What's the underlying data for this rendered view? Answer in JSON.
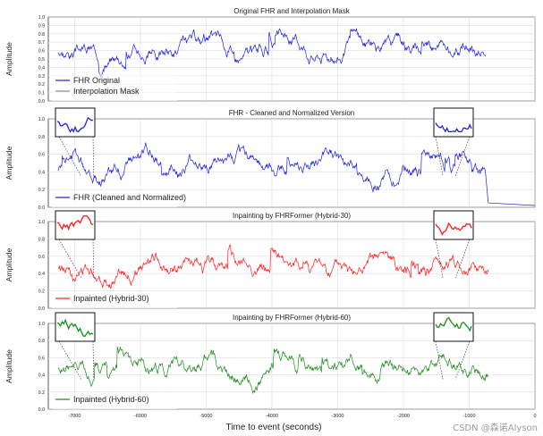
{
  "xlabel": "Time to event (seconds)",
  "watermark": "CSDN @森诺Alyson",
  "colors": {
    "blue": "#1f1fe0",
    "red": "#ff1a1a",
    "green": "#1a8a1a",
    "gray": "#8a8a8a",
    "grid": "#dcdcdc"
  },
  "chart_data": [
    {
      "type": "line",
      "title": "Original FHR and Interpolation Mask",
      "ylabel": "Amplitude",
      "xlim": [
        -7400,
        0
      ],
      "ylim": [
        0,
        1.0
      ],
      "yticks": [
        "0.0",
        "0.1",
        "0.2",
        "0.3",
        "0.4",
        "0.5",
        "0.6",
        "0.7",
        "0.8",
        "0.9",
        "1.0"
      ],
      "xticks": [],
      "legend": [
        "FHR Original",
        "Interpolation Mask"
      ],
      "series": [
        {
          "name": "FHR Original",
          "color": "blue",
          "start": -7250,
          "end": -750,
          "base": 0.6,
          "amp": 0.22,
          "seed": 3
        },
        {
          "name": "Interpolation Mask",
          "color": "gray",
          "type": "mask"
        }
      ]
    },
    {
      "type": "line",
      "title": "FHR - Cleaned and Normalized Version",
      "ylabel": "Amplitude",
      "xlim": [
        -7400,
        0
      ],
      "ylim": [
        0,
        1.0
      ],
      "yticks": [
        "0.0",
        "0.2",
        "0.4",
        "0.6",
        "0.8",
        "1.0"
      ],
      "xticks": [],
      "legend": [
        "FHR (Cleaned and Normalized)"
      ],
      "series": [
        {
          "name": "FHR (Cleaned and Normalized)",
          "color": "blue",
          "start": -7250,
          "end": -750,
          "base": 0.45,
          "amp": 0.25,
          "seed": 7,
          "tail": true
        }
      ]
    },
    {
      "type": "line",
      "title": "Inpainting by FHRFormer (Hybrid-30)",
      "ylabel": "Amplitude",
      "xlim": [
        -7400,
        0
      ],
      "ylim": [
        0,
        1.0
      ],
      "yticks": [
        "0.0",
        "0.2",
        "0.4",
        "0.6",
        "0.8",
        "1.0"
      ],
      "xticks": [],
      "legend": [
        "Inpainted (Hybrid-30)"
      ],
      "series": [
        {
          "name": "Inpainted (Hybrid-30)",
          "color": "red",
          "start": -7250,
          "end": -700,
          "base": 0.45,
          "amp": 0.25,
          "seed": 7
        }
      ]
    },
    {
      "type": "line",
      "title": "Inpainting by FHRFormer (Hybrid-60)",
      "ylabel": "Amplitude",
      "xlim": [
        -7400,
        0
      ],
      "ylim": [
        0,
        1.0
      ],
      "yticks": [
        "0.0",
        "0.2",
        "0.4",
        "0.6",
        "0.8",
        "1.0"
      ],
      "xticks": [
        "-7000",
        "-6000",
        "-5000",
        "-4000",
        "-3000",
        "-2000",
        "-1000",
        "0"
      ],
      "legend": [
        "Inpainted (Hybrid-60)"
      ],
      "series": [
        {
          "name": "Inpainted (Hybrid-60)",
          "color": "green",
          "start": -7250,
          "end": -700,
          "base": 0.45,
          "amp": 0.25,
          "seed": 9
        }
      ]
    }
  ]
}
